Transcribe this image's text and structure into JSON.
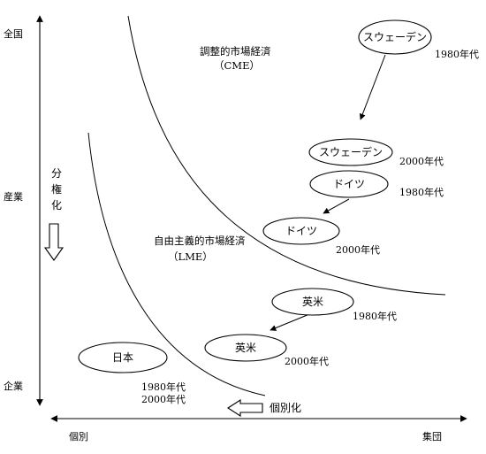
{
  "axes": {
    "y_ticks": {
      "top": "全国",
      "middle": "産業",
      "bottom": "企業"
    },
    "x_ticks": {
      "left": "個別",
      "right": "集団"
    }
  },
  "regions": {
    "cme": {
      "line1": "調整的市場経済",
      "line2": "（CME）"
    },
    "lme": {
      "line1": "自由主義的市場経済",
      "line2": "（LME）"
    }
  },
  "trends": {
    "vertical": {
      "c1": "分",
      "c2": "権",
      "c3": "化"
    },
    "horizontal": "個別化"
  },
  "nodes": {
    "sweden_1980": {
      "country": "スウェーデン",
      "year": "1980年代"
    },
    "sweden_2000": {
      "country": "スウェーデン",
      "year": "2000年代"
    },
    "germany_1980": {
      "country": "ドイツ",
      "year": "1980年代"
    },
    "germany_2000": {
      "country": "ドイツ",
      "year": "2000年代"
    },
    "anglo_1980": {
      "country": "英米",
      "year": "1980年代"
    },
    "anglo_2000": {
      "country": "英米",
      "year": "2000年代"
    },
    "japan": {
      "country": "日本",
      "year1": "1980年代",
      "year2": "2000年代"
    }
  },
  "colors": {
    "ink": "#000000",
    "background": "#ffffff"
  }
}
